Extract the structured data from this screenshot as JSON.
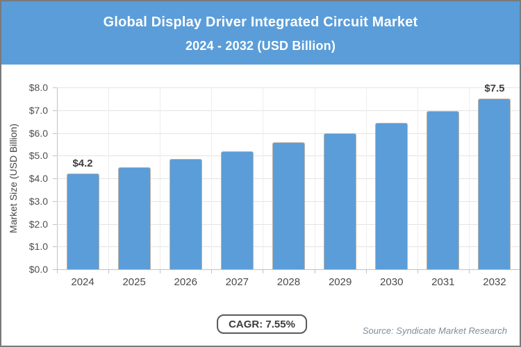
{
  "header": {
    "title": "Global Display Driver Integrated Circuit Market",
    "subtitle": "2024 - 2032 (USD Billion)",
    "bg_color": "#5b9dd9",
    "text_color": "#ffffff"
  },
  "chart_data": {
    "type": "bar",
    "title": "Global Display Driver Integrated Circuit Market",
    "subtitle": "2024 - 2032 (USD Billion)",
    "categories": [
      "2024",
      "2025",
      "2026",
      "2027",
      "2028",
      "2029",
      "2030",
      "2031",
      "2032"
    ],
    "values": [
      4.2,
      4.5,
      4.85,
      5.2,
      5.6,
      6.0,
      6.45,
      6.95,
      7.5
    ],
    "data_labels": [
      "$4.2",
      "",
      "",
      "",
      "",
      "",
      "",
      "",
      "$7.5"
    ],
    "xlabel": "",
    "ylabel": "Market Size (USD Billion)",
    "ylim": [
      0,
      8
    ],
    "ytick_labels": [
      "$0.0",
      "$1.0",
      "$2.0",
      "$3.0",
      "$4.0",
      "$5.0",
      "$6.0",
      "$7.0",
      "$8.0"
    ],
    "grid": true,
    "legend_position": "none",
    "bar_color": "#5b9dd9"
  },
  "footer": {
    "cagr_label": "CAGR: 7.55%",
    "source": "Source: Syndicate Market Research"
  }
}
